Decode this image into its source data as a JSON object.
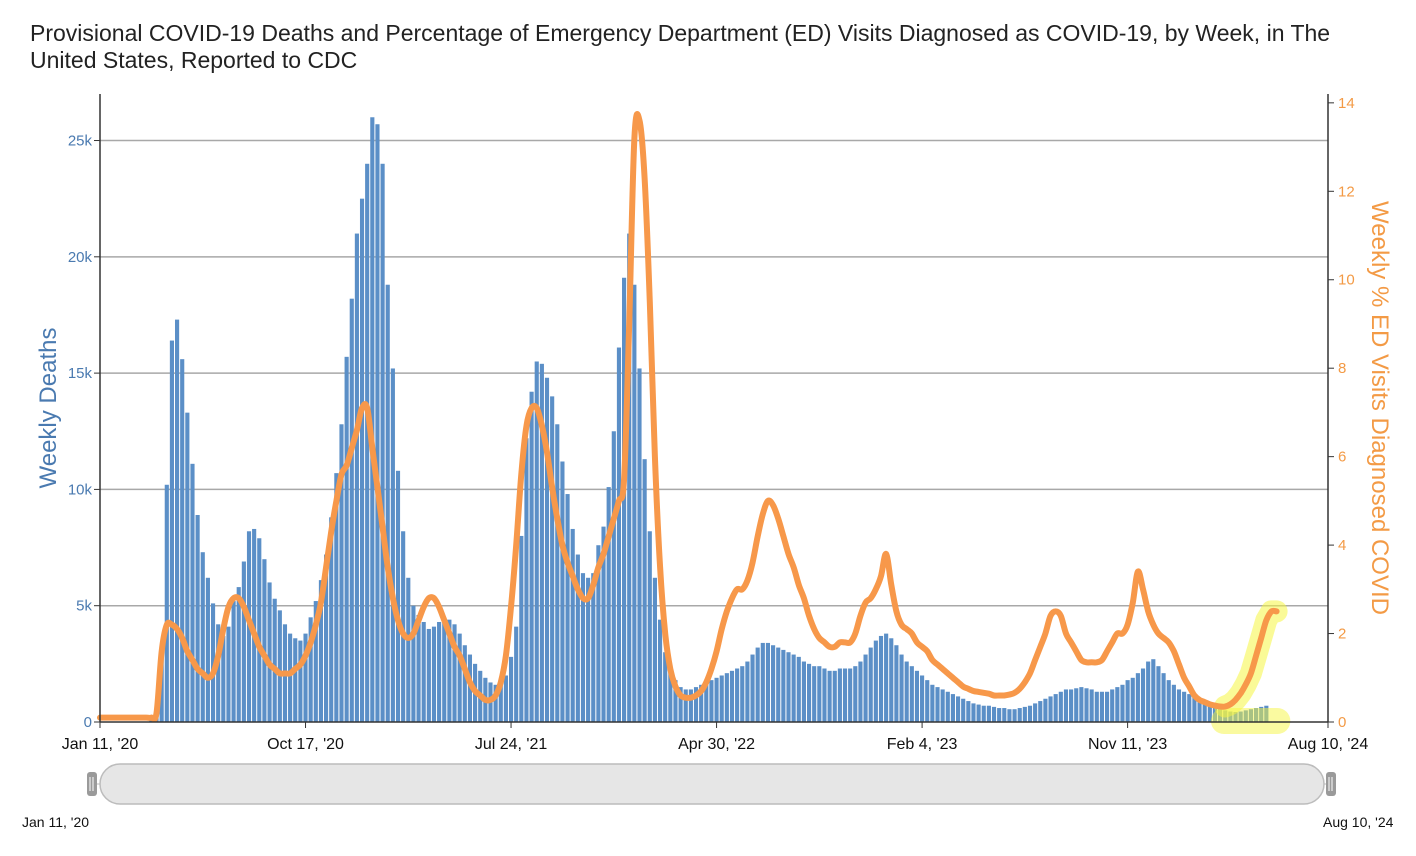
{
  "title": "Provisional COVID-19 Deaths and Percentage of Emergency Department (ED) Visits Diagnosed as COVID-19, by Week, in The United States, Reported to CDC",
  "range_selector": {
    "start_label": "Jan 11, '20",
    "end_label": "Aug 10, '24"
  },
  "colors": {
    "bars": "#5b8fc7",
    "line": "#f7984a",
    "highlight": "#f5f542",
    "left_axis": "#4a7ab0",
    "right_axis": "#f39a45"
  },
  "chart_data": {
    "type": "bar+line",
    "title": "Provisional COVID-19 Deaths and Percentage of Emergency Department (ED) Visits Diagnosed as COVID-19, by Week, in The United States, Reported to CDC",
    "x_start": "2020-01-11",
    "x_end": "2024-08-10",
    "x_interval": "weekly",
    "x_ticks": [
      "Jan 11, '20",
      "Oct 17, '20",
      "Jul 24, '21",
      "Apr 30, '22",
      "Feb 4, '23",
      "Nov 11, '23",
      "Aug 10, '24"
    ],
    "y_left": {
      "label": "Weekly Deaths",
      "range": [
        0,
        27000
      ],
      "ticks": [
        "0",
        "5k",
        "10k",
        "15k",
        "20k",
        "25k"
      ]
    },
    "y_right": {
      "label": "Weekly % ED Visits Diagnosed COVID",
      "range": [
        0,
        14.2
      ],
      "ticks": [
        "0",
        "2",
        "4",
        "6",
        "8",
        "10",
        "12",
        "14"
      ]
    },
    "grid": true,
    "series": [
      {
        "name": "Weekly Deaths",
        "type": "bar",
        "axis": "left",
        "values": [
          0,
          0,
          0,
          0,
          0,
          0,
          0,
          0,
          0,
          20,
          80,
          300,
          3300,
          10200,
          16400,
          17300,
          15600,
          13300,
          11100,
          8900,
          7300,
          6200,
          5100,
          4200,
          3700,
          4100,
          5200,
          5800,
          6900,
          8200,
          8300,
          7900,
          7000,
          6000,
          5300,
          4800,
          4200,
          3800,
          3600,
          3500,
          3800,
          4500,
          5200,
          6100,
          7200,
          8800,
          10700,
          12800,
          15700,
          18200,
          21000,
          22500,
          24000,
          26000,
          25700,
          24000,
          18800,
          15200,
          10800,
          8200,
          6200,
          5000,
          4600,
          4300,
          4000,
          4100,
          4300,
          4500,
          4400,
          4200,
          3800,
          3300,
          2900,
          2500,
          2200,
          1900,
          1700,
          1600,
          1700,
          2000,
          2800,
          4100,
          8000,
          12200,
          14200,
          15500,
          15400,
          14800,
          14000,
          12800,
          11200,
          9800,
          8300,
          7200,
          6400,
          6200,
          6400,
          7600,
          8400,
          10100,
          12500,
          16100,
          19100,
          21000,
          18800,
          15200,
          11300,
          8200,
          6200,
          4400,
          3000,
          2300,
          1800,
          1500,
          1400,
          1400,
          1500,
          1600,
          1700,
          1800,
          1900,
          2000,
          2100,
          2200,
          2300,
          2400,
          2600,
          2900,
          3200,
          3400,
          3400,
          3300,
          3200,
          3100,
          3000,
          2900,
          2800,
          2600,
          2500,
          2400,
          2400,
          2300,
          2200,
          2200,
          2300,
          2300,
          2300,
          2400,
          2600,
          2900,
          3200,
          3500,
          3700,
          3800,
          3600,
          3300,
          2900,
          2600,
          2400,
          2200,
          2000,
          1800,
          1600,
          1500,
          1400,
          1300,
          1200,
          1100,
          1000,
          900,
          800,
          750,
          700,
          700,
          650,
          600,
          600,
          550,
          550,
          600,
          650,
          700,
          800,
          900,
          1000,
          1100,
          1200,
          1300,
          1400,
          1400,
          1450,
          1500,
          1450,
          1400,
          1300,
          1300,
          1300,
          1400,
          1500,
          1600,
          1800,
          1900,
          2100,
          2300,
          2600,
          2700,
          2400,
          2100,
          1800,
          1600,
          1400,
          1300,
          1200,
          1100,
          1000,
          900,
          800,
          700,
          600,
          500,
          450,
          430,
          450,
          500,
          550,
          600,
          650,
          700
        ]
      },
      {
        "name": "Weekly % ED Visits Diagnosed COVID",
        "type": "line",
        "axis": "right",
        "values": [
          0.1,
          0.1,
          0.1,
          0.1,
          0.1,
          0.1,
          0.1,
          0.1,
          0.1,
          0.1,
          0.1,
          0.2,
          1.6,
          2.2,
          2.2,
          2.1,
          1.9,
          1.6,
          1.4,
          1.2,
          1.1,
          1.0,
          1.1,
          1.5,
          2.1,
          2.6,
          2.8,
          2.8,
          2.6,
          2.3,
          2.0,
          1.7,
          1.5,
          1.3,
          1.2,
          1.1,
          1.1,
          1.1,
          1.2,
          1.3,
          1.5,
          1.8,
          2.2,
          2.7,
          3.5,
          4.3,
          5.0,
          5.6,
          5.8,
          6.2,
          6.6,
          7.1,
          7.1,
          6.2,
          5.3,
          4.4,
          3.5,
          2.8,
          2.3,
          2.0,
          1.9,
          2.0,
          2.3,
          2.6,
          2.8,
          2.8,
          2.6,
          2.3,
          2.0,
          1.7,
          1.5,
          1.2,
          0.9,
          0.7,
          0.6,
          0.5,
          0.5,
          0.6,
          0.9,
          1.5,
          2.6,
          4.0,
          5.6,
          6.7,
          7.1,
          7.1,
          6.7,
          6.1,
          5.3,
          4.6,
          4.0,
          3.6,
          3.3,
          3.0,
          2.8,
          2.8,
          3.1,
          3.5,
          3.8,
          4.2,
          4.6,
          5.0,
          5.5,
          9.0,
          13.2,
          13.6,
          12.3,
          9.5,
          6.0,
          3.5,
          2.0,
          1.2,
          0.8,
          0.6,
          0.55,
          0.55,
          0.6,
          0.7,
          0.9,
          1.2,
          1.6,
          2.1,
          2.5,
          2.8,
          3.0,
          3.0,
          3.2,
          3.6,
          4.2,
          4.7,
          5.0,
          4.9,
          4.6,
          4.2,
          3.8,
          3.5,
          3.1,
          2.8,
          2.4,
          2.1,
          1.9,
          1.8,
          1.7,
          1.7,
          1.8,
          1.8,
          1.8,
          2.0,
          2.4,
          2.7,
          2.8,
          3.0,
          3.3,
          3.8,
          3.1,
          2.5,
          2.2,
          2.1,
          2.0,
          1.8,
          1.7,
          1.6,
          1.4,
          1.3,
          1.2,
          1.1,
          1.0,
          0.9,
          0.8,
          0.75,
          0.7,
          0.68,
          0.66,
          0.64,
          0.6,
          0.6,
          0.6,
          0.62,
          0.66,
          0.75,
          0.9,
          1.1,
          1.4,
          1.7,
          2.0,
          2.4,
          2.5,
          2.4,
          2.0,
          1.8,
          1.6,
          1.4,
          1.35,
          1.35,
          1.35,
          1.4,
          1.6,
          1.8,
          2.0,
          2.0,
          2.2,
          2.7,
          3.4,
          3.0,
          2.5,
          2.2,
          2.0,
          1.9,
          1.8,
          1.6,
          1.3,
          1.0,
          0.8,
          0.6,
          0.5,
          0.45,
          0.4,
          0.37,
          0.35,
          0.35,
          0.4,
          0.5,
          0.65,
          0.85,
          1.1,
          1.5,
          1.9,
          2.3,
          2.5,
          2.5
        ]
      }
    ],
    "highlights": [
      "latest line rise (Jun–Aug 2024)",
      "latest bars near zero (Jun–Aug 2024)"
    ]
  }
}
